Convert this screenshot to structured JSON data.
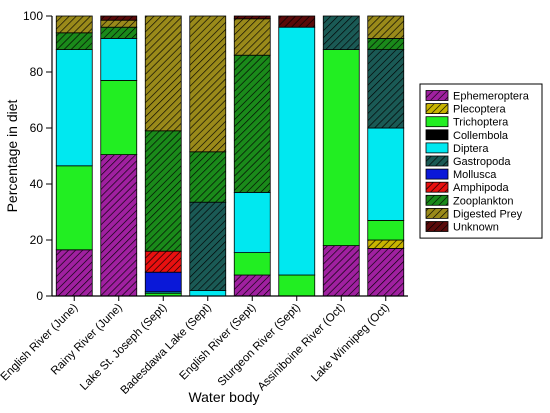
{
  "chart_data": {
    "type": "bar",
    "stacked": true,
    "title": "",
    "xlabel": "Water body",
    "ylabel": "Percentage in diet",
    "ylim": [
      0,
      100
    ],
    "yticks": [
      0,
      20,
      40,
      60,
      80,
      100
    ],
    "grid": false,
    "legend_position": "right",
    "categories": [
      "English River (June)",
      "Rainy River (June)",
      "Lake St. Joseph (Sept)",
      "Badesdawa Lake (Sept)",
      "English River (Sept)",
      "Sturgeon River (Sept)",
      "Assiniboine River (Oct)",
      "Lake Winnipeg (Oct)"
    ],
    "series": [
      {
        "name": "Ephemeroptera",
        "color": "#a020a0",
        "pattern": "hatch",
        "values": [
          16.5,
          50.5,
          0,
          0,
          7.5,
          0,
          18,
          17
        ]
      },
      {
        "name": "Plecoptera",
        "color": "#c8b400",
        "pattern": "hatch",
        "values": [
          0,
          0,
          0,
          0,
          0,
          0,
          0,
          3
        ]
      },
      {
        "name": "Trichoptera",
        "color": "#22ee22",
        "pattern": "solid",
        "values": [
          30,
          26.5,
          1,
          0,
          8,
          7.5,
          70,
          7
        ]
      },
      {
        "name": "Collembola",
        "color": "#000000",
        "pattern": "solid",
        "values": [
          0,
          0,
          0,
          0,
          0,
          0,
          0,
          0
        ]
      },
      {
        "name": "Diptera",
        "color": "#00e8f0",
        "pattern": "solid",
        "values": [
          41.5,
          15,
          0.5,
          2,
          21.5,
          88.5,
          0,
          33
        ]
      },
      {
        "name": "Gastropoda",
        "color": "#1a5a55",
        "pattern": "hatch",
        "values": [
          0,
          0,
          0,
          31.5,
          0,
          0,
          12,
          28
        ]
      },
      {
        "name": "Mollusca",
        "color": "#0a18d8",
        "pattern": "solid",
        "values": [
          0,
          0,
          7,
          0,
          0,
          0,
          0,
          0
        ]
      },
      {
        "name": "Amphipoda",
        "color": "#e81010",
        "pattern": "hatch",
        "values": [
          0,
          0,
          7.5,
          0,
          0,
          0,
          0,
          0
        ]
      },
      {
        "name": "Zooplankton",
        "color": "#1a8a1a",
        "pattern": "hatch",
        "values": [
          6,
          4,
          43,
          18,
          49,
          0,
          0,
          4
        ]
      },
      {
        "name": "Digested Prey",
        "color": "#9a8a1a",
        "pattern": "hatch",
        "values": [
          6,
          2.5,
          41,
          48.5,
          13,
          0,
          0,
          8
        ]
      },
      {
        "name": "Unknown",
        "color": "#5a0a0a",
        "pattern": "hatch",
        "values": [
          0,
          1.5,
          0,
          0,
          1,
          4,
          0,
          0
        ]
      }
    ]
  }
}
